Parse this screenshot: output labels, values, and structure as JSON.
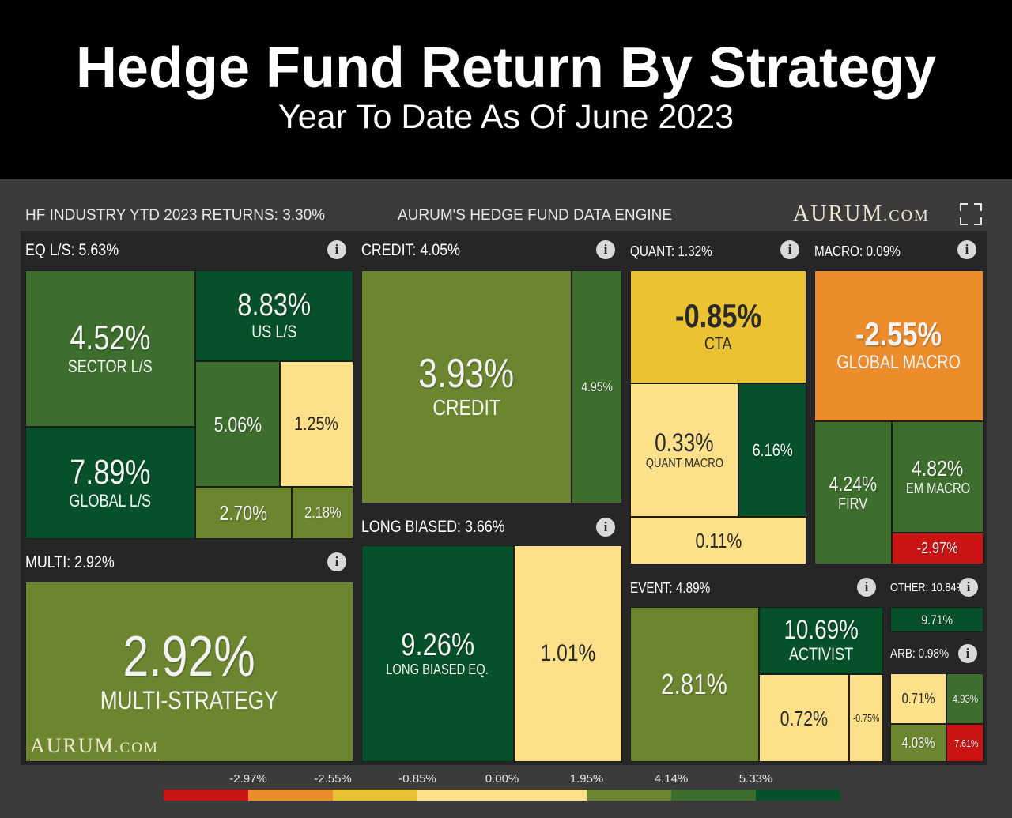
{
  "title": "Hedge Fund Return By Strategy",
  "subtitle": "Year To Date As Of June 2023",
  "header": {
    "industry_returns": "HF INDUSTRY YTD 2023 RETURNS: 3.30%",
    "engine": "AURUM'S HEDGE FUND DATA ENGINE",
    "brand_main": "AURUM",
    "brand_suffix": ".COM",
    "fullscreen_icon": "fullscreen-icon",
    "info_icon": "i"
  },
  "chart_data": {
    "type": "treemap",
    "title": "Hedge Fund Return By Strategy",
    "subtitle": "Year To Date As Of June 2023",
    "units": "%",
    "industry_return": 3.3,
    "groups": [
      {
        "label": "EQ L/S: 5.63%",
        "name": "EQ L/S",
        "value": 5.63,
        "tiles": [
          {
            "name": "SECTOR L/S",
            "value": 4.52,
            "label": "4.52%"
          },
          {
            "name": "US L/S",
            "value": 8.83,
            "label": "8.83%"
          },
          {
            "name": "GLOBAL L/S",
            "value": 7.89,
            "label": "7.89%"
          },
          {
            "name": "",
            "value": 5.06,
            "label": "5.06%"
          },
          {
            "name": "",
            "value": 1.25,
            "label": "1.25%"
          },
          {
            "name": "",
            "value": 2.7,
            "label": "2.70%"
          },
          {
            "name": "",
            "value": 2.18,
            "label": "2.18%"
          }
        ]
      },
      {
        "label": "CREDIT: 4.05%",
        "name": "CREDIT",
        "value": 4.05,
        "tiles": [
          {
            "name": "CREDIT",
            "value": 3.93,
            "label": "3.93%"
          },
          {
            "name": "",
            "value": 4.95,
            "label": "4.95%"
          }
        ]
      },
      {
        "label": "QUANT: 1.32%",
        "name": "QUANT",
        "value": 1.32,
        "tiles": [
          {
            "name": "CTA",
            "value": -0.85,
            "label": "-0.85%"
          },
          {
            "name": "QUANT MACRO",
            "value": 0.33,
            "label": "0.33%"
          },
          {
            "name": "",
            "value": 6.16,
            "label": "6.16%"
          },
          {
            "name": "",
            "value": 0.11,
            "label": "0.11%"
          }
        ]
      },
      {
        "label": "MACRO: 0.09%",
        "name": "MACRO",
        "value": 0.09,
        "tiles": [
          {
            "name": "GLOBAL MACRO",
            "value": -2.55,
            "label": "-2.55%"
          },
          {
            "name": "FIRV",
            "value": 4.24,
            "label": "4.24%"
          },
          {
            "name": "EM MACRO",
            "value": 4.82,
            "label": "4.82%"
          },
          {
            "name": "",
            "value": -2.97,
            "label": "-2.97%"
          }
        ]
      },
      {
        "label": "MULTI: 2.92%",
        "name": "MULTI",
        "value": 2.92,
        "tiles": [
          {
            "name": "MULTI-STRATEGY",
            "value": 2.92,
            "label": "2.92%"
          }
        ]
      },
      {
        "label": "LONG BIASED: 3.66%",
        "name": "LONG BIASED",
        "value": 3.66,
        "tiles": [
          {
            "name": "LONG BIASED EQ.",
            "value": 9.26,
            "label": "9.26%"
          },
          {
            "name": "",
            "value": 1.01,
            "label": "1.01%"
          }
        ]
      },
      {
        "label": "EVENT: 4.89%",
        "name": "EVENT",
        "value": 4.89,
        "tiles": [
          {
            "name": "",
            "value": 2.81,
            "label": "2.81%"
          },
          {
            "name": "ACTIVIST",
            "value": 10.69,
            "label": "10.69%"
          },
          {
            "name": "",
            "value": 0.72,
            "label": "0.72%"
          },
          {
            "name": "",
            "value": -0.75,
            "label": "-0.75%"
          }
        ]
      },
      {
        "label": "OTHER: 10.84%",
        "name": "OTHER",
        "value": 10.84,
        "tiles": [
          {
            "name": "",
            "value": 9.71,
            "label": "9.71%"
          }
        ]
      },
      {
        "label": "ARB: 0.98%",
        "name": "ARB",
        "value": 0.98,
        "tiles": [
          {
            "name": "",
            "value": 0.71,
            "label": "0.71%"
          },
          {
            "name": "",
            "value": 4.93,
            "label": "4.93%"
          },
          {
            "name": "",
            "value": 4.03,
            "label": "4.03%"
          },
          {
            "name": "",
            "value": -7.61,
            "label": "-7.61%"
          }
        ]
      }
    ],
    "legend": {
      "ticks": [
        "-2.97%",
        "-2.55%",
        "-0.85%",
        "0.00%",
        "1.95%",
        "4.14%",
        "5.33%"
      ],
      "colors": [
        "#cc1414",
        "#ec8c2b",
        "#ecc235",
        "#fde18a",
        "#fde18a",
        "#6c8630",
        "#3e6e2d",
        "#07512a"
      ]
    },
    "color_scale": {
      "thresholds": [
        -2.97,
        -2.55,
        -0.85,
        1.95,
        4.14,
        5.33
      ],
      "colors": [
        "#cc1414",
        "#ec8c2b",
        "#ecc235",
        "#fde18a",
        "#6c8630",
        "#3e6e2d",
        "#07512a"
      ]
    }
  },
  "footer": {
    "logo_main": "AURUM",
    "logo_suffix": ".COM"
  }
}
